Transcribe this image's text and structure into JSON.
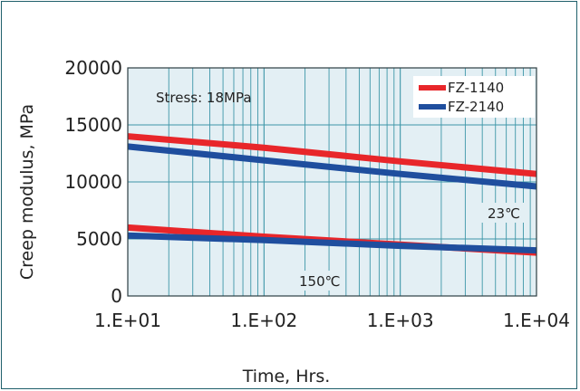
{
  "chart_data": {
    "type": "line",
    "title": "",
    "xlabel": "Time, Hrs.",
    "ylabel": "Creep modulus, MPa",
    "x_scale": "log",
    "xlim": [
      10,
      10000
    ],
    "ylim": [
      0,
      20000
    ],
    "x_ticks": [
      10,
      100,
      1000,
      10000
    ],
    "x_tick_labels": [
      "1.E+01",
      "1.E+02",
      "1.E+03",
      "1.E+04"
    ],
    "y_ticks": [
      0,
      5000,
      10000,
      15000,
      20000
    ],
    "y_tick_labels": [
      "0",
      "5000",
      "10000",
      "15000",
      "20000"
    ],
    "grid": true,
    "legend_position": "top-right",
    "annotations": {
      "stress": "Stress: 18MPa",
      "temp_high": "23℃",
      "temp_low": "150℃"
    },
    "series": [
      {
        "name": "FZ-1140",
        "condition": "23℃",
        "color": "#e8262a",
        "x": [
          10,
          100,
          1000,
          10000
        ],
        "y": [
          14000,
          13000,
          11800,
          10700
        ]
      },
      {
        "name": "FZ-2140",
        "condition": "23℃",
        "color": "#1f4e9e",
        "x": [
          10,
          100,
          1000,
          10000
        ],
        "y": [
          13100,
          11900,
          10700,
          9600
        ]
      },
      {
        "name": "FZ-1140",
        "condition": "150℃",
        "color": "#e8262a",
        "x": [
          10,
          100,
          1000,
          10000
        ],
        "y": [
          6000,
          5200,
          4500,
          3800
        ]
      },
      {
        "name": "FZ-2140",
        "condition": "150℃",
        "color": "#1f4e9e",
        "x": [
          10,
          100,
          1000,
          10000
        ],
        "y": [
          5300,
          4900,
          4400,
          4000
        ]
      }
    ],
    "legend": [
      {
        "name": "FZ-1140",
        "color": "#e8262a"
      },
      {
        "name": "FZ-2140",
        "color": "#1f4e9e"
      }
    ]
  }
}
